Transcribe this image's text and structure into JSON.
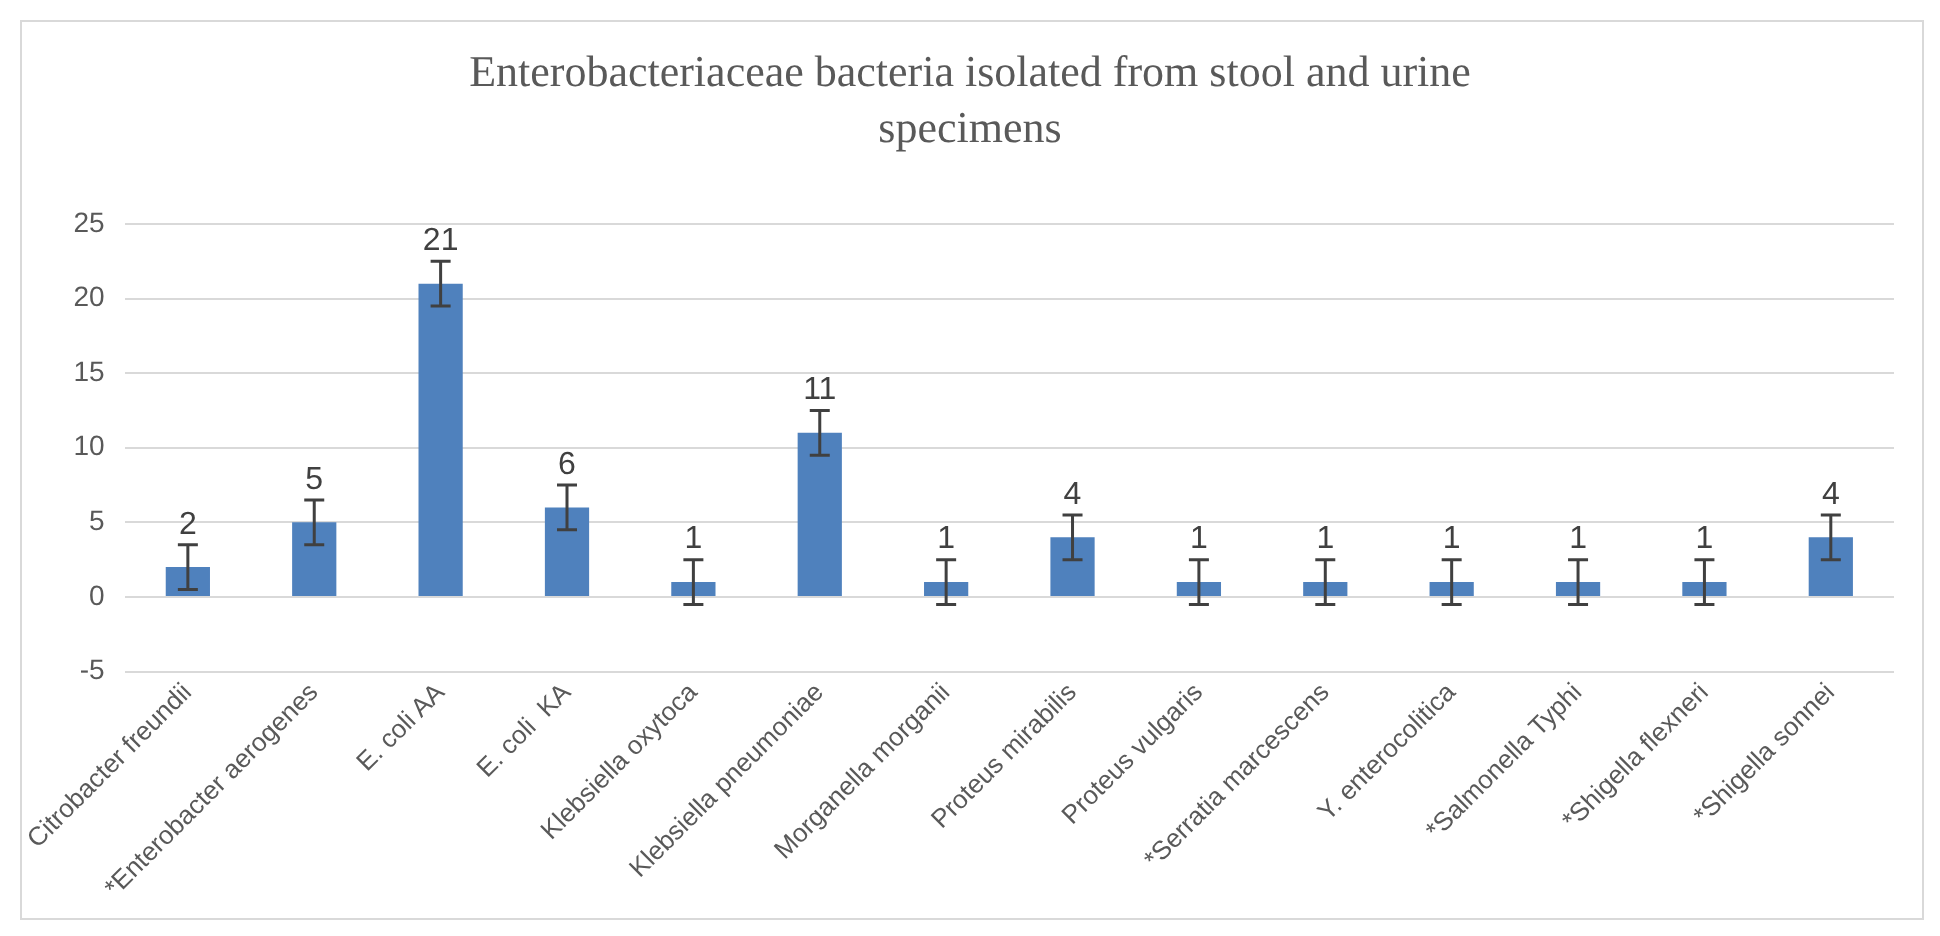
{
  "chart_data": {
    "type": "bar",
    "title": "Enterobacteriaceae bacteria isolated from stool and urine specimens",
    "categories": [
      "Citrobacter freundii",
      "*Enterobacter aerogenes",
      "E. coli AA",
      "E. coli  KA",
      "Klebsiella oxytoca",
      "Klebsiella pneumoniae",
      "Morganella morganii",
      "Proteus mirabilis",
      "Proteus vulgaris",
      "*Serratia marcescens",
      "Y. enterocolitica",
      "*Salmonella Typhi",
      "*Shigella flexneri",
      "*Shigella sonnei"
    ],
    "values": [
      2,
      5,
      21,
      6,
      1,
      11,
      1,
      4,
      1,
      1,
      1,
      1,
      1,
      4
    ],
    "errors": [
      1.5,
      1.5,
      1.5,
      1.5,
      1.5,
      1.5,
      1.5,
      1.5,
      1.5,
      1.5,
      1.5,
      1.5,
      1.5,
      1.5
    ],
    "color": "#4f81bd",
    "ylim": [
      -5,
      25
    ],
    "yticks": [
      -5,
      0,
      5,
      10,
      15,
      20,
      25
    ],
    "grid": "y",
    "data_labels": true,
    "legend": false
  }
}
